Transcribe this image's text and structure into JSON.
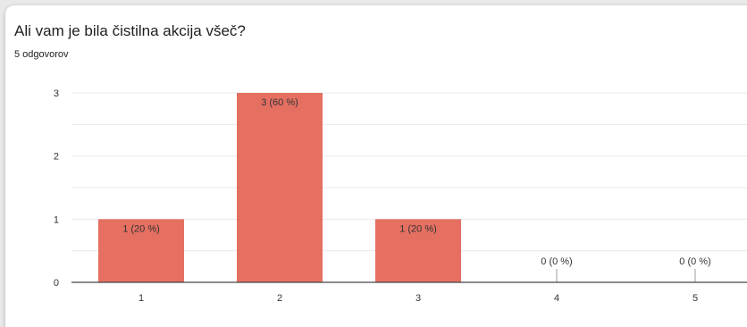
{
  "question": "Ali vam je bila čistilna akcija všeč?",
  "responses": "5 odgovorov",
  "colors": {
    "bar": "#e57062",
    "grid": "#e8e8e8",
    "axis": "#444444"
  },
  "chart_data": {
    "type": "bar",
    "categories": [
      "1",
      "2",
      "3",
      "4",
      "5"
    ],
    "values": [
      1,
      3,
      1,
      0,
      0
    ],
    "data_labels": [
      "1 (20 %)",
      "3 (60 %)",
      "1 (20 %)",
      "0 (0 %)",
      "0 (0 %)"
    ],
    "yticks": [
      "0",
      "1",
      "2",
      "3"
    ],
    "ylim": [
      0,
      3
    ],
    "grid": true,
    "xlabel": "",
    "ylabel": ""
  }
}
